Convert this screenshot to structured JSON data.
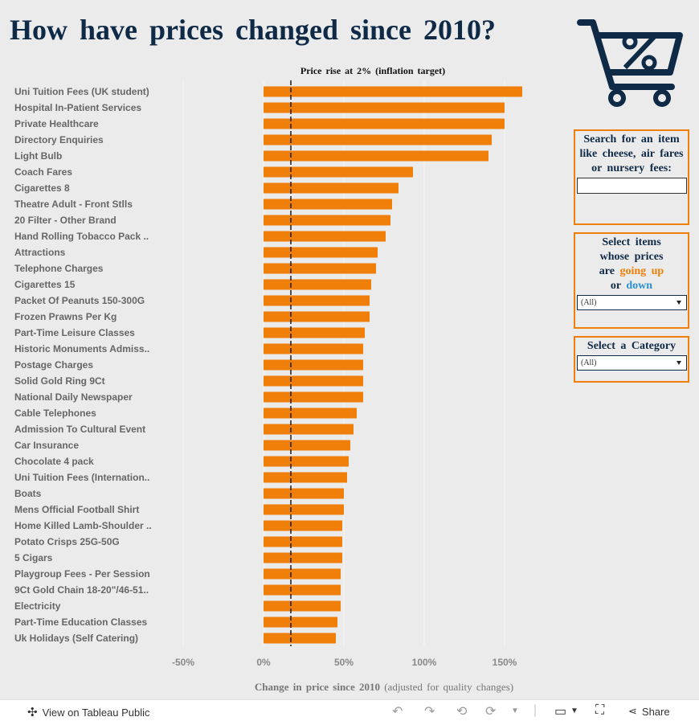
{
  "title": "How have prices changed since 2010?",
  "reference_label": "Price rise at 2% (inflation target)",
  "x_axis_label": "Change in price since 2010",
  "x_axis_sublabel": "(adjusted for quality changes)",
  "colors": {
    "bar": "#f07f09",
    "title": "#0e2a47",
    "up": "#f07f09",
    "down": "#2b8fd6"
  },
  "search_panel": {
    "label": "Search for an item like cheese, air fares or nursery fees:",
    "value": ""
  },
  "direction_panel": {
    "label_line1": "Select items",
    "label_line2": "whose prices",
    "label_are": "are",
    "label_up": "going up",
    "label_or": "or",
    "label_down": "down",
    "selected": "(All)"
  },
  "category_panel": {
    "label": "Select a Category",
    "selected": "(All)"
  },
  "footer": {
    "view_label": "View on Tableau Public",
    "share_label": "Share"
  },
  "chart_data": {
    "type": "bar",
    "orientation": "horizontal",
    "categories": [
      "Uni Tuition Fees (UK student)",
      "Hospital In-Patient Services",
      "Private Healthcare",
      "Directory Enquiries",
      "Light Bulb",
      "Coach Fares",
      "Cigarettes 8",
      "Theatre Adult - Front Stlls",
      "20 Filter - Other Brand",
      "Hand Rolling Tobacco Pack ..",
      "Attractions",
      "Telephone Charges",
      "Cigarettes 15",
      "Packet Of Peanuts 150-300G",
      "Frozen Prawns Per Kg",
      "Part-Time Leisure Classes",
      "Historic Monuments Admiss..",
      "Postage Charges",
      "Solid Gold Ring 9Ct",
      "National Daily Newspaper",
      "Cable Telephones",
      "Admission To Cultural Event",
      "Car Insurance",
      "Chocolate  4 pack",
      "Uni Tuition Fees (Internation..",
      "Boats",
      "Mens Official Football Shirt",
      "Home Killed Lamb-Shoulder ..",
      "Potato Crisps 25G-50G",
      "5 Cigars",
      "Playgroup Fees - Per Session",
      "9Ct Gold Chain 18-20\"/46-51..",
      "Electricity",
      "Part-Time Education Classes",
      "Uk Holidays (Self Catering)"
    ],
    "values": [
      161,
      150,
      150,
      142,
      140,
      93,
      84,
      80,
      79,
      76,
      71,
      70,
      67,
      66,
      66,
      63,
      62,
      62,
      62,
      62,
      58,
      56,
      54,
      53,
      52,
      50,
      50,
      49,
      49,
      49,
      48,
      48,
      48,
      46,
      45
    ],
    "reference_line": 17,
    "xlim": [
      -50,
      170
    ],
    "xticks": [
      -50,
      0,
      50,
      100,
      150
    ],
    "xtick_labels": [
      "-50%",
      "0%",
      "50%",
      "100%",
      "150%"
    ],
    "xlabel": "Change in price since 2010 (adjusted for quality changes)",
    "ylabel": "",
    "grid": true
  }
}
